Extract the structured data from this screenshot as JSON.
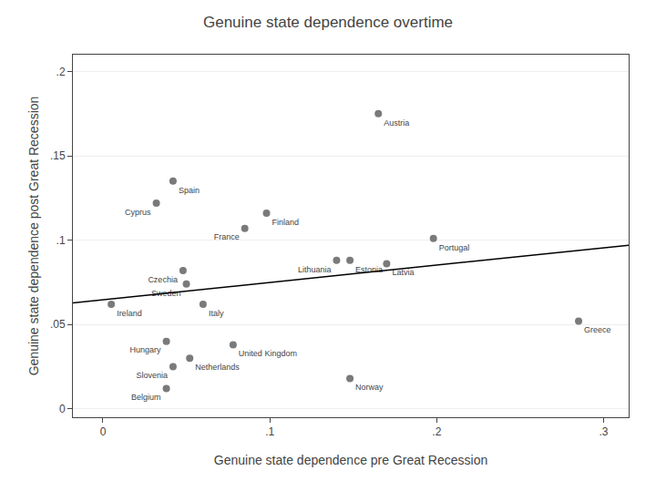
{
  "chart_data": {
    "type": "scatter",
    "title": "Genuine state dependence overtime",
    "xlabel": "Genuine state dependence pre Great Recession",
    "ylabel": "Genuine state dependence post Great Recession",
    "xlim": [
      -0.018,
      0.315
    ],
    "ylim": [
      -0.005,
      0.21
    ],
    "xticks": [
      0,
      {
        "value": 0.1,
        "label": ".1"
      },
      {
        "value": 0.2,
        "label": ".2"
      },
      {
        "value": 0.3,
        "label": ".3"
      }
    ],
    "yticks": [
      0,
      {
        "value": 0.05,
        "label": ".05"
      },
      {
        "value": 0.1,
        "label": ".1"
      },
      {
        "value": 0.15,
        "label": ".15"
      },
      {
        "value": 0.2,
        "label": ".2"
      }
    ],
    "grid": "y",
    "series": [
      {
        "type": "scatter",
        "marker": "circle",
        "color": "#7a7a7a",
        "labels": [
          "Ireland",
          "Cyprus",
          "Spain",
          "Hungary",
          "Belgium",
          "Slovenia",
          "Netherlands",
          "Czechia",
          "Sweden",
          "Italy",
          "France",
          "Finland",
          "United Kingdom",
          "Lithuania",
          "Estonia",
          "Latvia",
          "Austria",
          "Portugal",
          "Norway",
          "Greece"
        ],
        "x": [
          0.005,
          0.032,
          0.042,
          0.038,
          0.038,
          0.042,
          0.052,
          0.048,
          0.05,
          0.06,
          0.085,
          0.098,
          0.078,
          0.14,
          0.148,
          0.17,
          0.165,
          0.198,
          0.148,
          0.285
        ],
        "values": [
          0.062,
          0.122,
          0.135,
          0.04,
          0.012,
          0.025,
          0.03,
          0.082,
          0.074,
          0.062,
          0.107,
          0.116,
          0.038,
          0.088,
          0.088,
          0.086,
          0.175,
          0.101,
          0.018,
          0.052
        ]
      },
      {
        "type": "line",
        "color": "#000000",
        "x": [
          -0.018,
          0.315
        ],
        "values": [
          0.0628,
          0.097
        ]
      }
    ]
  }
}
